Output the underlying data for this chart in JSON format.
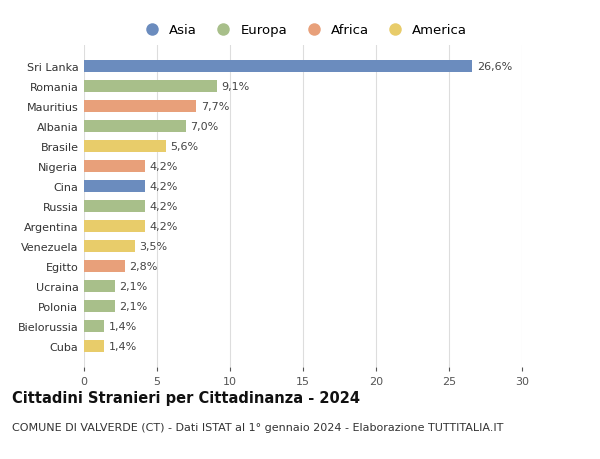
{
  "countries": [
    "Sri Lanka",
    "Romania",
    "Mauritius",
    "Albania",
    "Brasile",
    "Nigeria",
    "Cina",
    "Russia",
    "Argentina",
    "Venezuela",
    "Egitto",
    "Ucraina",
    "Polonia",
    "Bielorussia",
    "Cuba"
  ],
  "values": [
    26.6,
    9.1,
    7.7,
    7.0,
    5.6,
    4.2,
    4.2,
    4.2,
    4.2,
    3.5,
    2.8,
    2.1,
    2.1,
    1.4,
    1.4
  ],
  "labels": [
    "26,6%",
    "9,1%",
    "7,7%",
    "7,0%",
    "5,6%",
    "4,2%",
    "4,2%",
    "4,2%",
    "4,2%",
    "3,5%",
    "2,8%",
    "2,1%",
    "2,1%",
    "1,4%",
    "1,4%"
  ],
  "continents": [
    "Asia",
    "Europa",
    "Africa",
    "Europa",
    "America",
    "Africa",
    "Asia",
    "Europa",
    "America",
    "America",
    "Africa",
    "Europa",
    "Europa",
    "Europa",
    "America"
  ],
  "colors": {
    "Asia": "#6b8cbe",
    "Europa": "#a8bf8a",
    "Africa": "#e8a07a",
    "America": "#e8cc6a"
  },
  "legend_order": [
    "Asia",
    "Europa",
    "Africa",
    "America"
  ],
  "title": "Cittadini Stranieri per Cittadinanza - 2024",
  "subtitle": "COMUNE DI VALVERDE (CT) - Dati ISTAT al 1° gennaio 2024 - Elaborazione TUTTITALIA.IT",
  "xlim": [
    0,
    30
  ],
  "xticks": [
    0,
    5,
    10,
    15,
    20,
    25,
    30
  ],
  "background_color": "#ffffff",
  "plot_bg_color": "#ffffff",
  "grid_color": "#dddddd",
  "bar_height": 0.6,
  "title_fontsize": 10.5,
  "subtitle_fontsize": 8.0,
  "label_fontsize": 8.0,
  "tick_fontsize": 8.0,
  "legend_fontsize": 9.5
}
